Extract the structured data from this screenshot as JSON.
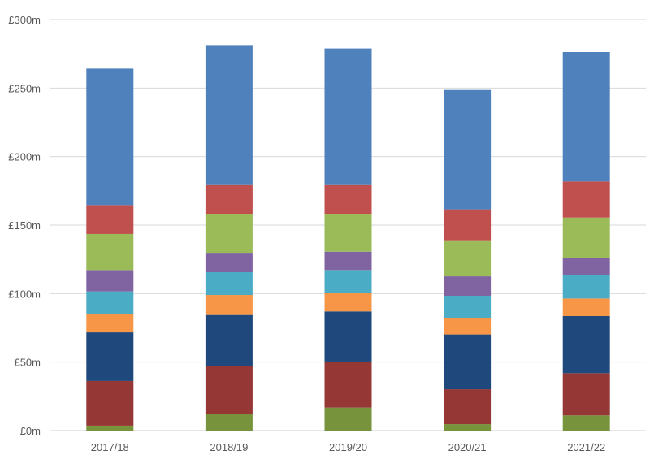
{
  "chart_data": {
    "type": "bar",
    "stacked": true,
    "title": "",
    "xlabel": "",
    "ylabel": "",
    "ylim": [
      0,
      300
    ],
    "yticks": [
      0,
      50,
      100,
      150,
      200,
      250,
      300
    ],
    "ytick_labels": [
      "£0m",
      "£50m",
      "£100m",
      "£150m",
      "£200m",
      "£250m",
      "£300m"
    ],
    "grid": true,
    "legend": "none",
    "categories": [
      "2017/18",
      "2018/19",
      "2019/20",
      "2020/21",
      "2021/22"
    ],
    "series": [
      {
        "color": "#77933C",
        "values": [
          3.6,
          12.3,
          16.8,
          4.7,
          11.1
        ]
      },
      {
        "color": "#953735",
        "values": [
          32.6,
          34.7,
          33.6,
          25.5,
          30.8
        ]
      },
      {
        "color": "#1F497D",
        "values": [
          35.5,
          37.4,
          36.6,
          40.0,
          41.7
        ]
      },
      {
        "color": "#F79646",
        "values": [
          13.1,
          14.6,
          13.4,
          12.2,
          12.8
        ]
      },
      {
        "color": "#4BACC6",
        "values": [
          16.8,
          16.6,
          16.8,
          16.0,
          17.4
        ]
      },
      {
        "color": "#8064A2",
        "values": [
          15.6,
          14.2,
          13.4,
          14.2,
          12.3
        ]
      },
      {
        "color": "#9BBB59",
        "values": [
          26.3,
          28.5,
          27.7,
          26.3,
          29.4
        ]
      },
      {
        "color": "#C0504D",
        "values": [
          21.1,
          20.9,
          20.9,
          22.6,
          26.3
        ]
      },
      {
        "color": "#4F81BD",
        "values": [
          99.6,
          102.2,
          99.7,
          87.1,
          94.5
        ]
      }
    ]
  }
}
